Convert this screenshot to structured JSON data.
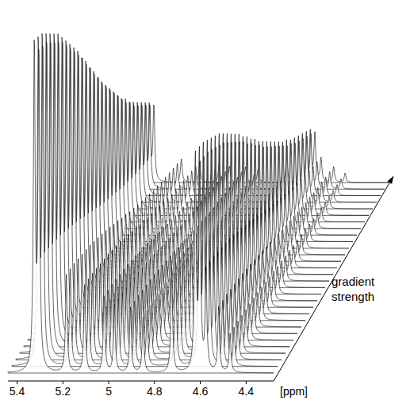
{
  "chart_data": {
    "type": "stacked_spectra",
    "x_label": "[ppm]",
    "depth_label": "gradient strength",
    "xlim": [
      5.44,
      4.28
    ],
    "xticks": [
      5.4,
      5.2,
      5.0,
      4.8,
      4.6,
      4.4
    ],
    "ylim": [
      0,
      100
    ],
    "tick_labels": "x",
    "color": "#000000",
    "peaks": {
      "x": [
        5.325,
        5.305,
        5.185,
        5.105,
        5.02,
        4.975,
        4.905,
        4.85,
        4.725,
        4.622,
        4.602,
        4.575,
        4.52,
        4.47
      ],
      "values": [
        100,
        97,
        30,
        27,
        24,
        21,
        20,
        17,
        33,
        66,
        62,
        30,
        20,
        12
      ]
    },
    "gradient_levels": [
      1.0,
      0.99,
      0.98,
      0.96,
      0.94,
      0.92,
      0.9,
      0.87,
      0.84,
      0.81,
      0.78,
      0.75,
      0.71,
      0.68,
      0.64,
      0.61,
      0.57,
      0.54,
      0.51,
      0.48,
      0.45,
      0.42,
      0.39,
      0.37,
      0.34,
      0.32,
      0.3,
      0.28,
      0.26,
      0.24
    ]
  }
}
